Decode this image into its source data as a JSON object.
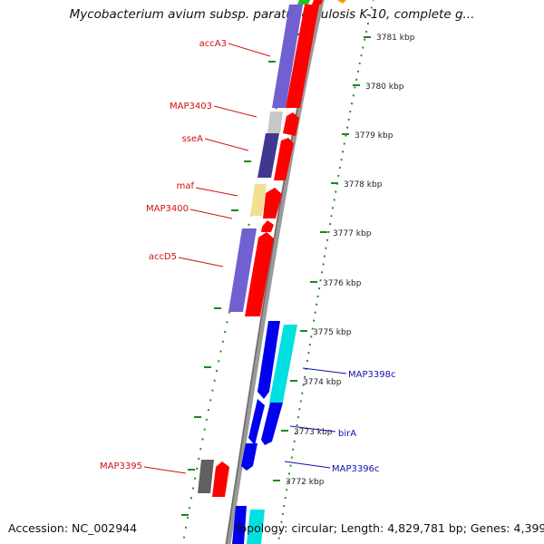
{
  "title": "Mycobacterium avium subsp. paratuberculosis K-10, complete g...",
  "footer": {
    "accession": "Accession: NC_002944",
    "summary": "Topology: circular; Length: 4,829,781 bp; Genes: 4,399"
  },
  "colors": {
    "backbone": "#808080",
    "reverse_label": "#d01010",
    "forward_label": "#1010b0",
    "tick": "#1a8a1a",
    "scale_dot": "#2a8a2a"
  },
  "scale": {
    "unit": "kbp",
    "ticks": [
      "3781 kbp",
      "3780 kbp",
      "3779 kbp",
      "3778 kbp",
      "3777 kbp",
      "3776 kbp",
      "3775 kbp",
      "3774 kbp",
      "3773 kbp",
      "3772 kbp"
    ]
  },
  "genes": [
    {
      "label": "accA3",
      "strand": "reverse",
      "color": "#7060d0"
    },
    {
      "label": "MAP3403",
      "strand": "reverse",
      "color": "#c0c0c0"
    },
    {
      "label": "sseA",
      "strand": "reverse",
      "color": "#403890"
    },
    {
      "label": "maf",
      "strand": "reverse",
      "color": "#f0e090"
    },
    {
      "label": "MAP3400",
      "strand": "reverse",
      "color": "#ff0000"
    },
    {
      "label": "accD5",
      "strand": "reverse",
      "color": "#7060d0"
    },
    {
      "label": "MAP3398c",
      "strand": "forward",
      "color": "#00e0e0"
    },
    {
      "label": "birA",
      "strand": "forward",
      "color": "#0000ee"
    },
    {
      "label": "MAP3396c",
      "strand": "forward",
      "color": "#0000ee"
    },
    {
      "label": "MAP3395",
      "strand": "reverse",
      "color": "#606060"
    }
  ]
}
